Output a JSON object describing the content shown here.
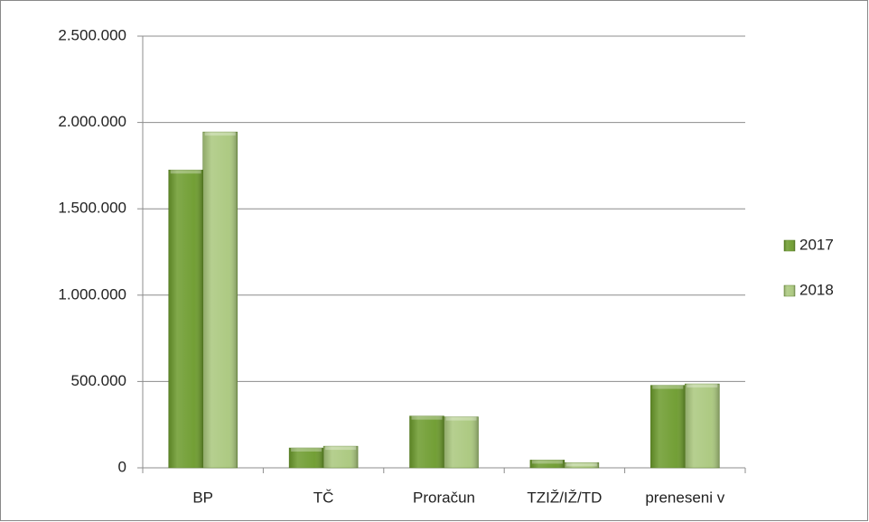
{
  "chart_data": {
    "type": "bar",
    "categories": [
      "BP",
      "TČ",
      "Proračun",
      "TZIŽ/IŽ/TD",
      "preneseni v"
    ],
    "series": [
      {
        "name": "2017",
        "color": "#6b9a2b",
        "values": [
          1725000,
          115000,
          300000,
          45000,
          478000
        ]
      },
      {
        "name": "2018",
        "color": "#a9c77c",
        "values": [
          1945000,
          125000,
          295000,
          30000,
          486000
        ]
      }
    ],
    "ylim": [
      0,
      2500000
    ],
    "yticks": [
      0,
      {
        "value": 500000,
        "label": "500.000"
      },
      {
        "value": 1000000,
        "label": "1.000.000"
      },
      {
        "value": 1500000,
        "label": "1.500.000"
      },
      {
        "value": 2000000,
        "label": "2.000.000"
      },
      {
        "value": 2500000,
        "label": "2.500.000"
      }
    ],
    "grid": true,
    "legend": "right"
  }
}
